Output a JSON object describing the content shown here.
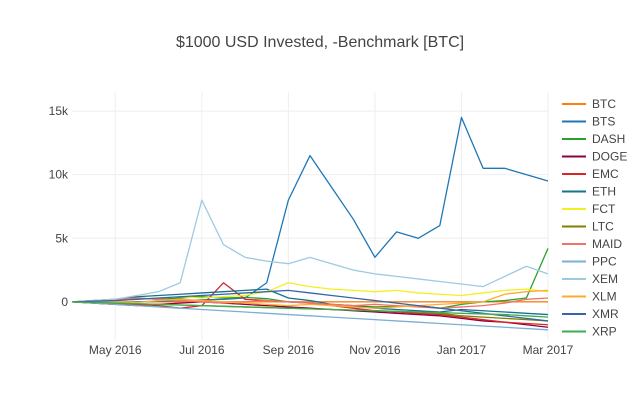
{
  "chart_data": {
    "type": "line",
    "title": "$1000 USD Invested, -Benchmark [BTC]",
    "xlabel": "",
    "ylabel": "",
    "ylim": [
      -3000,
      16500
    ],
    "y_ticks": [
      0,
      5000,
      10000,
      15000
    ],
    "y_tick_labels": [
      "0",
      "5k",
      "10k",
      "15k"
    ],
    "x_tick_labels": [
      "May 2016",
      "Jul 2016",
      "Sep 2016",
      "Nov 2016",
      "Jan 2017",
      "Mar 2017"
    ],
    "x_tick_positions": [
      1,
      3,
      5,
      7,
      9,
      11
    ],
    "x_range": [
      0,
      11
    ],
    "grid": true,
    "legend_position": "right",
    "x": [
      0,
      0.5,
      1,
      1.5,
      2,
      2.5,
      3,
      3.5,
      4,
      4.5,
      5,
      5.5,
      6,
      6.5,
      7,
      7.5,
      8,
      8.5,
      9,
      9.5,
      10,
      10.5,
      11
    ],
    "series": [
      {
        "name": "BTC",
        "color": "#ff7f0e",
        "values": [
          0,
          0,
          0,
          0,
          0,
          0,
          0,
          0,
          0,
          0,
          0,
          0,
          0,
          0,
          0,
          0,
          0,
          0,
          0,
          0,
          0,
          0,
          0
        ]
      },
      {
        "name": "BTS",
        "color": "#1f77b4",
        "values": [
          0,
          -50,
          -100,
          0,
          50,
          100,
          150,
          200,
          300,
          1500,
          8000,
          11500,
          9000,
          6500,
          3500,
          5500,
          5000,
          6000,
          14500,
          10500,
          10500,
          10000,
          9500
        ]
      },
      {
        "name": "DASH",
        "color": "#2ca02c",
        "values": [
          0,
          50,
          100,
          300,
          200,
          300,
          400,
          300,
          350,
          250,
          0,
          -100,
          -200,
          -300,
          -400,
          -350,
          -300,
          -500,
          -200,
          0,
          100,
          300,
          4200
        ]
      },
      {
        "name": "DOGE",
        "color": "#8c0040",
        "values": [
          0,
          -100,
          -200,
          -300,
          -200,
          -100,
          0,
          -100,
          -200,
          -300,
          -400,
          -500,
          -600,
          -700,
          -800,
          -900,
          -1000,
          -1100,
          -1300,
          -1500,
          -1600,
          -1800,
          -2000
        ]
      },
      {
        "name": "EMC",
        "color": "#d62728",
        "values": [
          0,
          -100,
          -200,
          -200,
          -300,
          -500,
          -300,
          1500,
          200,
          100,
          0,
          -100,
          -300,
          -500,
          -700,
          -800,
          -900,
          -1000,
          -1200,
          -1400,
          -1600,
          -1700,
          -1800
        ]
      },
      {
        "name": "ETH",
        "color": "#17728f",
        "values": [
          0,
          100,
          200,
          400,
          500,
          600,
          700,
          800,
          900,
          1000,
          300,
          100,
          -200,
          -300,
          -500,
          -600,
          -700,
          -800,
          -600,
          -700,
          -800,
          -900,
          -1000
        ]
      },
      {
        "name": "FCT",
        "color": "#f4ef21",
        "values": [
          0,
          50,
          100,
          200,
          300,
          400,
          300,
          400,
          500,
          800,
          1500,
          1200,
          1000,
          900,
          800,
          900,
          700,
          600,
          500,
          700,
          900,
          1000,
          800
        ]
      },
      {
        "name": "LTC",
        "color": "#7f7f00",
        "values": [
          0,
          -50,
          -100,
          -150,
          -200,
          -250,
          -300,
          -350,
          -400,
          -450,
          -500,
          -550,
          -600,
          -650,
          -700,
          -750,
          -800,
          -900,
          -1100,
          -1200,
          -1300,
          -1400,
          -1500
        ]
      },
      {
        "name": "MAID",
        "color": "#f0736a",
        "values": [
          0,
          100,
          200,
          300,
          200,
          100,
          0,
          -100,
          0,
          100,
          0,
          -100,
          -200,
          -300,
          -200,
          -300,
          -400,
          -500,
          -400,
          -300,
          -100,
          200,
          300
        ]
      },
      {
        "name": "PPC",
        "color": "#7bafd4",
        "values": [
          0,
          -100,
          -200,
          -300,
          -400,
          -500,
          -600,
          -700,
          -800,
          -900,
          -1000,
          -1100,
          -1200,
          -1300,
          -1400,
          -1500,
          -1600,
          -1700,
          -1800,
          -1900,
          -2000,
          -2100,
          -2200
        ]
      },
      {
        "name": "XEM",
        "color": "#9ecae1",
        "values": [
          0,
          100,
          200,
          500,
          800,
          1500,
          8000,
          4500,
          3500,
          3200,
          3000,
          3500,
          3000,
          2500,
          2200,
          2000,
          1800,
          1600,
          1400,
          1200,
          2000,
          2800,
          2200
        ]
      },
      {
        "name": "XLM",
        "color": "#ffaa33",
        "values": [
          0,
          50,
          0,
          -50,
          100,
          200,
          100,
          0,
          -100,
          -200,
          -300,
          -200,
          -300,
          -400,
          -500,
          -400,
          -300,
          -200,
          -100,
          0,
          600,
          800,
          900
        ]
      },
      {
        "name": "XMR",
        "color": "#3366a8",
        "values": [
          0,
          50,
          100,
          200,
          300,
          400,
          500,
          600,
          700,
          800,
          900,
          700,
          500,
          300,
          100,
          -100,
          -300,
          -500,
          -700,
          -900,
          -1100,
          -1300,
          -1500
        ]
      },
      {
        "name": "XRP",
        "color": "#3dab4f",
        "values": [
          0,
          -50,
          -100,
          -150,
          -200,
          -250,
          -300,
          -350,
          -400,
          -450,
          -500,
          -550,
          -600,
          -650,
          -700,
          -750,
          -800,
          -850,
          -900,
          -950,
          -1000,
          -1100,
          -1200
        ]
      }
    ]
  }
}
